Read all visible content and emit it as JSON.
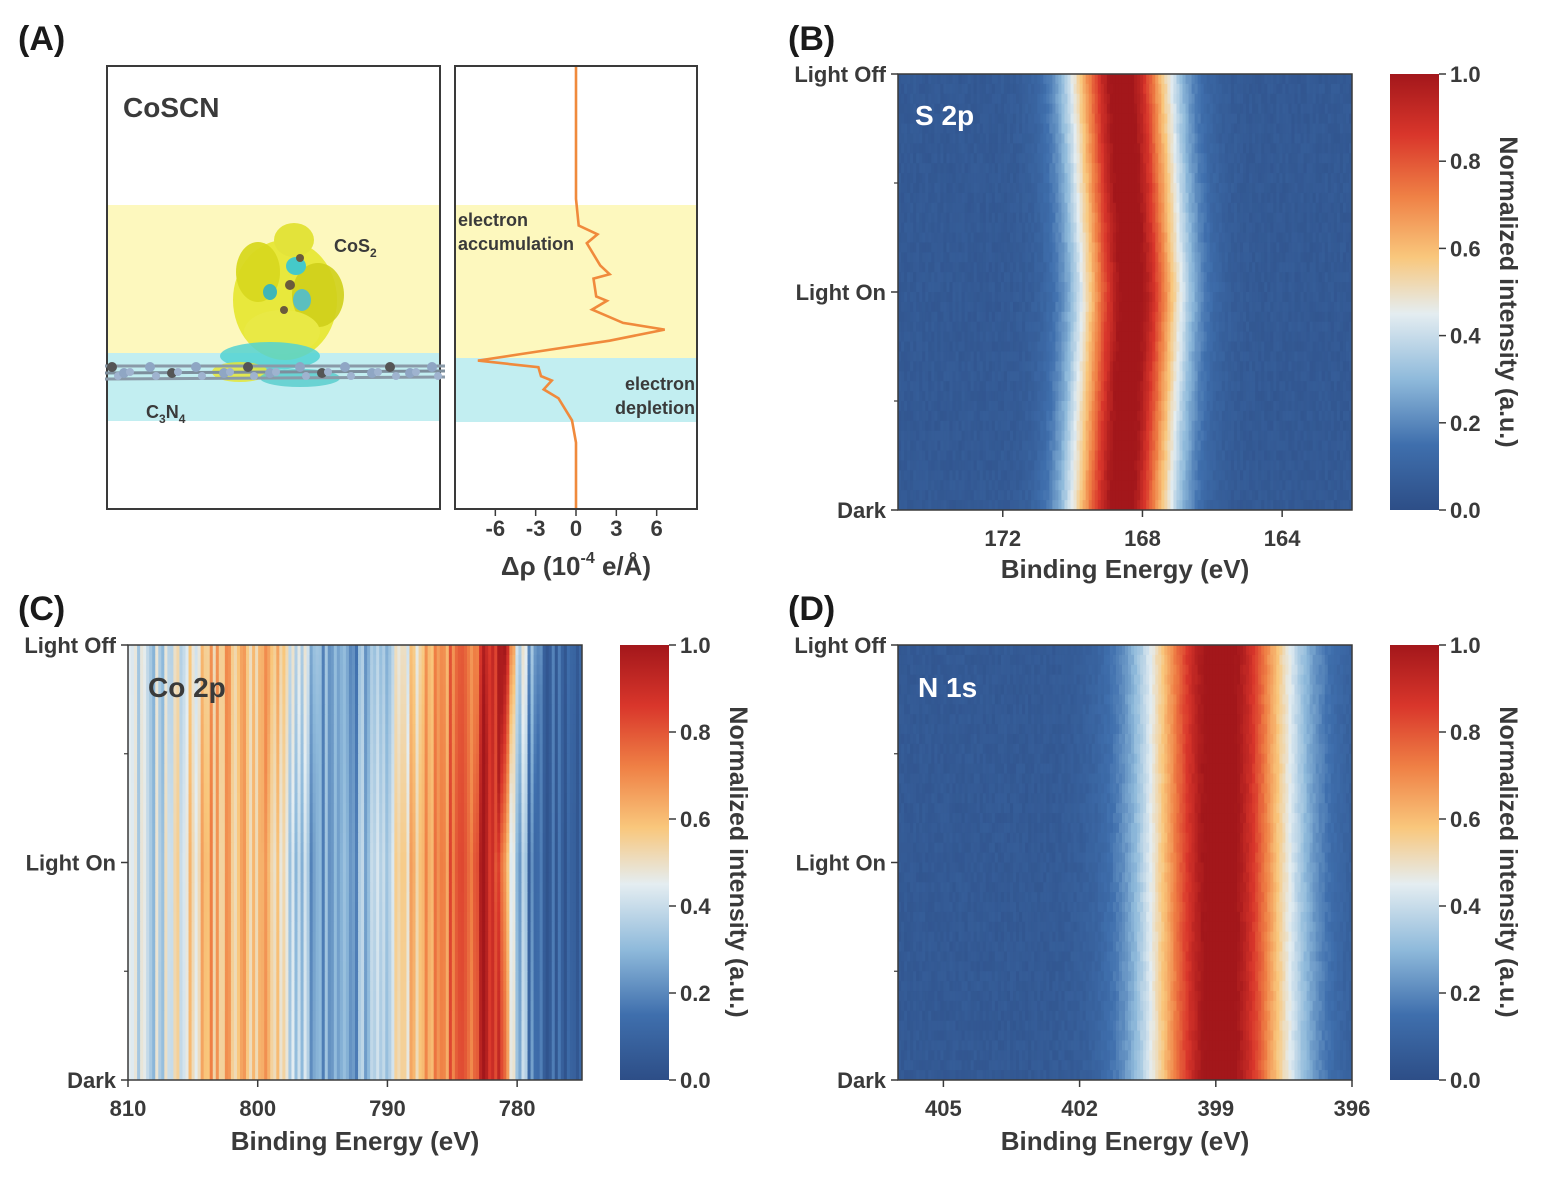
{
  "panels": {
    "A": {
      "letter": "(A)",
      "structure_title": "CoSCN",
      "cos2_label": "CoS",
      "cos2_sub": "2",
      "c3n4_c": "C",
      "c3n4_sub3": "3",
      "c3n4_n": "N",
      "c3n4_sub4": "4",
      "accumulation_line1": "electron",
      "accumulation_line2": "accumulation",
      "depletion_line1": "electron",
      "depletion_line2": "depletion",
      "accumulation_color": "#fdf8be",
      "depletion_color": "#c2eef1",
      "profile_color": "#f08a3c",
      "xlabel": "Δρ (10",
      "xlabel_exp": "-4",
      "xlabel_tail": " e/Å)",
      "xticks": [
        "-6",
        "-3",
        "0",
        "3",
        "6"
      ]
    },
    "B": {
      "letter": "(B)",
      "tag": "S 2p"
    },
    "C": {
      "letter": "(C)",
      "tag": "Co 2p"
    },
    "D": {
      "letter": "(D)",
      "tag": "N 1s"
    }
  },
  "common": {
    "y_tick_top": "Light Off",
    "y_tick_mid": "Light On",
    "y_tick_bottom": "Dark",
    "xlabel": "Binding Energy (eV)",
    "colorbar_label": "Normalized intensity (a.u.)",
    "colorbar_ticks": [
      "0.0",
      "0.2",
      "0.4",
      "0.6",
      "0.8",
      "1.0"
    ]
  },
  "chart_data": [
    {
      "type": "line",
      "x_unit": "10^-4 e/Å",
      "xlim": [
        -9,
        9
      ],
      "xticks": [
        -6,
        -3,
        0,
        3,
        6
      ],
      "x": [
        0,
        0,
        0,
        0.2,
        1.6,
        0.8,
        1.8,
        2.5,
        1.3,
        1.5,
        2.3,
        1.2,
        3.5,
        6.6,
        2.5,
        -4,
        -7.3,
        -2.8,
        -2.6,
        -1.8,
        -2.4,
        -1.3,
        -0.3,
        0,
        0
      ],
      "y": [
        0,
        0.25,
        0.3,
        0.36,
        0.38,
        0.4,
        0.45,
        0.47,
        0.48,
        0.52,
        0.53,
        0.55,
        0.58,
        0.595,
        0.62,
        0.65,
        0.665,
        0.68,
        0.7,
        0.71,
        0.73,
        0.75,
        0.8,
        0.85,
        1.0
      ]
    },
    {
      "type": "heatmap",
      "tag": "S 2p",
      "xlabel": "Binding Energy (eV)",
      "xlim": [
        175,
        162
      ],
      "xticks": [
        172,
        168,
        164
      ],
      "ylabels": [
        "Light Off",
        "Light On",
        "Dark"
      ],
      "color_range": [
        0.0,
        1.0
      ],
      "colormap": [
        "#2d4e87",
        "#3f6fad",
        "#8fbadb",
        "#e4edf1",
        "#f9c77c",
        "#ef8045",
        "#d9362b",
        "#a3171b"
      ],
      "peak": {
        "Light Off": 168.6,
        "Light On": 168.3,
        "Dark": 168.6
      },
      "fwhm": 2.4
    },
    {
      "type": "heatmap",
      "tag": "Co 2p",
      "xlabel": "Binding Energy (eV)",
      "xlim": [
        810,
        775
      ],
      "xticks": [
        810,
        800,
        790,
        780
      ],
      "ylabels": [
        "Light Off",
        "Light On",
        "Dark"
      ],
      "color_range": [
        0.0,
        1.0
      ],
      "colormap": [
        "#2d4e87",
        "#3f6fad",
        "#8fbadb",
        "#e4edf1",
        "#f9c77c",
        "#ef8045",
        "#d9362b",
        "#a3171b"
      ],
      "peak": {
        "Light Off": 781.5,
        "Light On": 782.2,
        "Dark": 782.0
      },
      "profile_x": [
        810,
        807,
        805,
        803,
        801,
        799,
        797,
        795,
        793,
        791,
        789,
        787,
        785,
        783,
        782,
        781,
        780,
        778,
        776,
        775
      ],
      "profile_v": [
        0.35,
        0.38,
        0.48,
        0.62,
        0.58,
        0.6,
        0.42,
        0.22,
        0.2,
        0.28,
        0.42,
        0.62,
        0.7,
        0.8,
        0.95,
        0.92,
        0.45,
        0.12,
        0.08,
        0.05
      ]
    },
    {
      "type": "heatmap",
      "tag": "N 1s",
      "xlabel": "Binding Energy (eV)",
      "xlim": [
        406,
        396
      ],
      "xticks": [
        405,
        402,
        399,
        396
      ],
      "ylabels": [
        "Light Off",
        "Light On",
        "Dark"
      ],
      "color_range": [
        0.0,
        1.0
      ],
      "colormap": [
        "#2d4e87",
        "#3f6fad",
        "#8fbadb",
        "#e4edf1",
        "#f9c77c",
        "#ef8045",
        "#d9362b",
        "#a3171b"
      ],
      "peak": {
        "Light Off": 398.9,
        "Light On": 398.9,
        "Dark": 398.9
      },
      "fwhm": 2.6
    }
  ]
}
